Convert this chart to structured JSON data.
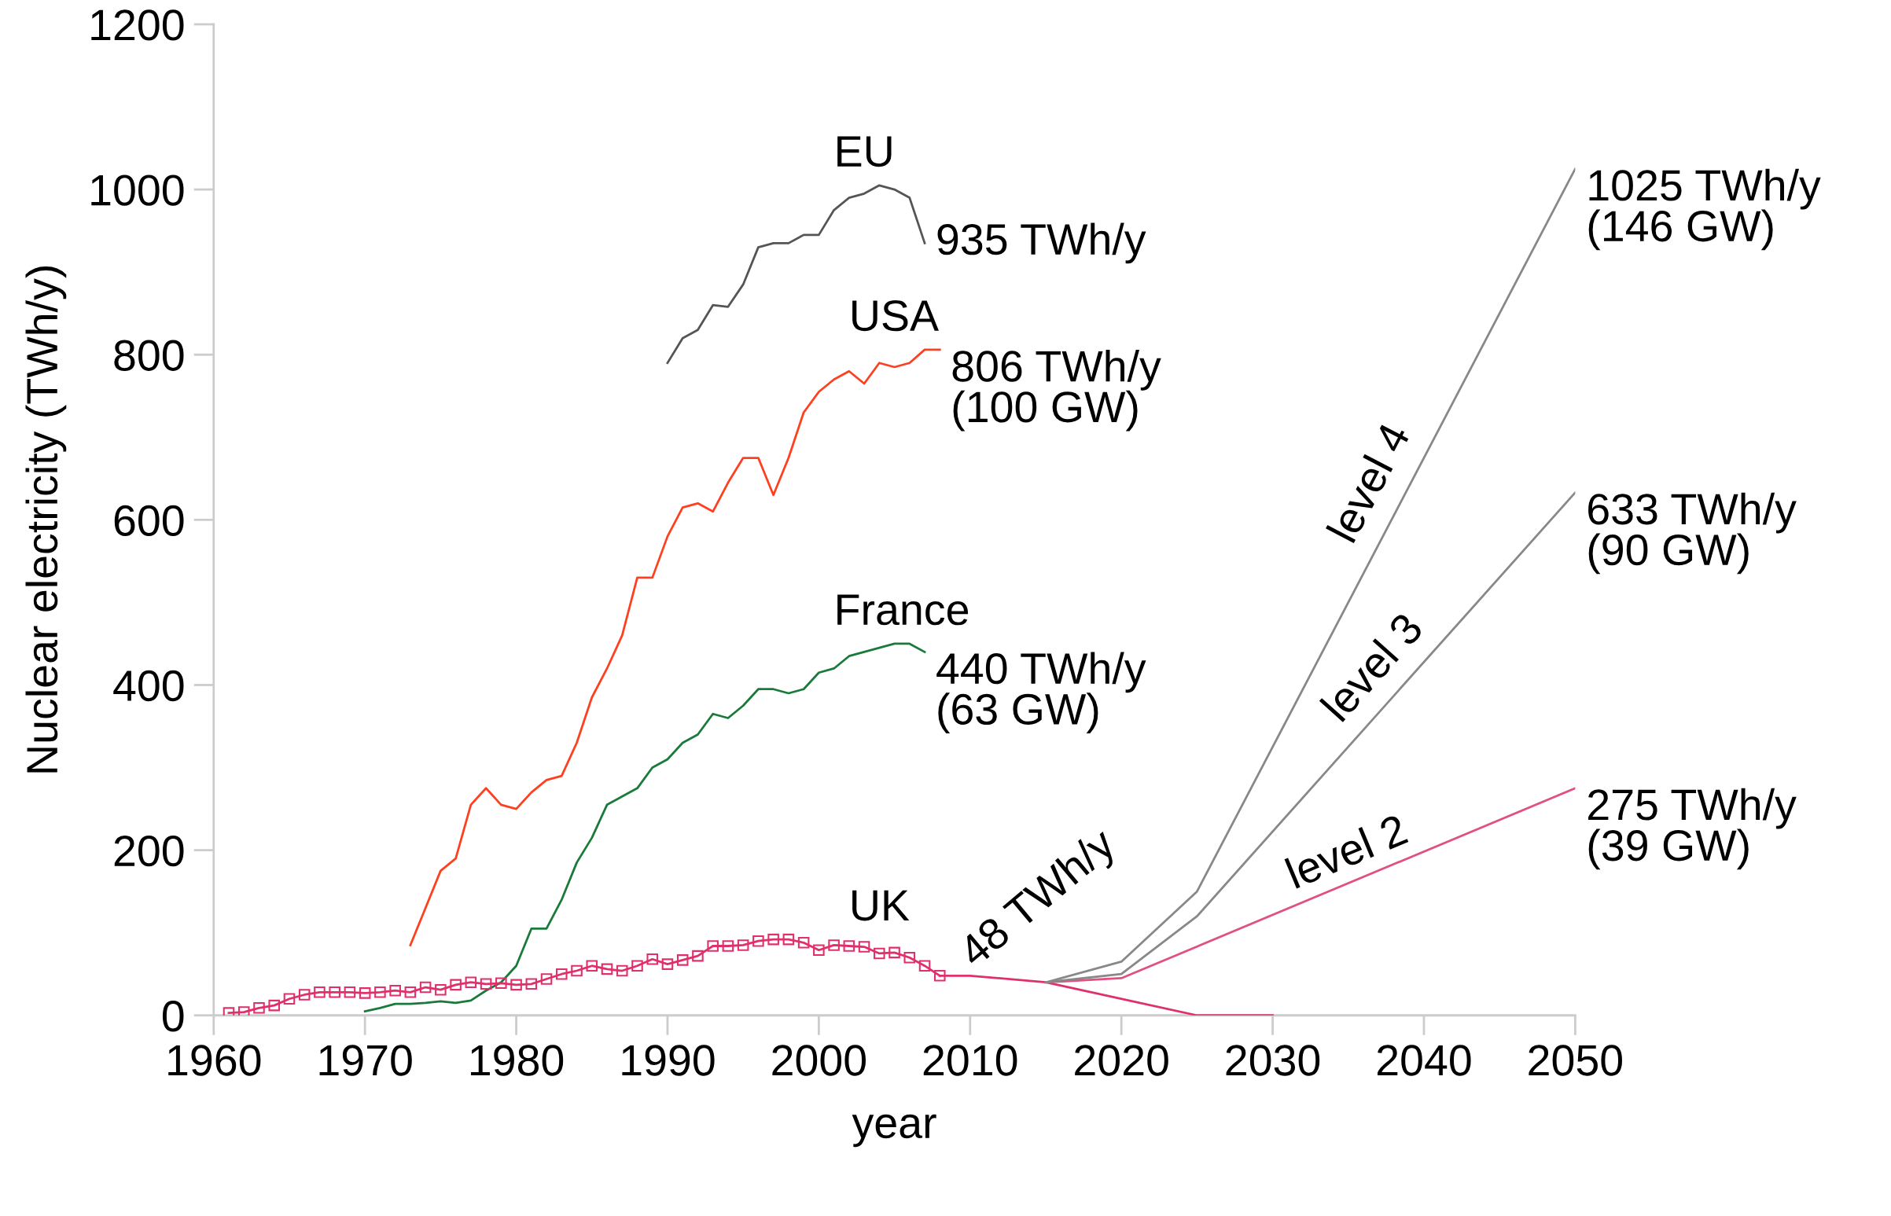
{
  "chart_data": {
    "type": "line",
    "xlabel": "year",
    "ylabel": "Nuclear electricity (TWh/y)",
    "xlim": [
      1960,
      2050
    ],
    "xticks": [
      1960,
      1970,
      1980,
      1990,
      2000,
      2010,
      2020,
      2030,
      2040,
      2050
    ],
    "ylim": [
      0,
      1200
    ],
    "yticks": [
      0,
      200,
      400,
      600,
      800,
      1000,
      1200
    ],
    "grid": false,
    "legend": false,
    "series": [
      {
        "name": "EU",
        "color": "#555555",
        "x": [
          1990,
          1991,
          1992,
          1993,
          1994,
          1995,
          1996,
          1997,
          1998,
          1999,
          2000,
          2001,
          2002,
          2003,
          2004,
          2005,
          2006,
          2007
        ],
        "values": [
          790,
          820,
          830,
          860,
          858,
          885,
          930,
          935,
          935,
          945,
          945,
          975,
          990,
          995,
          1005,
          1000,
          990,
          935
        ]
      },
      {
        "name": "USA",
        "color": "#ff4020",
        "x": [
          1973,
          1974,
          1975,
          1976,
          1977,
          1978,
          1979,
          1980,
          1981,
          1982,
          1983,
          1984,
          1985,
          1986,
          1987,
          1988,
          1989,
          1990,
          1991,
          1992,
          1993,
          1994,
          1995,
          1996,
          1997,
          1998,
          1999,
          2000,
          2001,
          2002,
          2003,
          2004,
          2005,
          2006,
          2007,
          2008
        ],
        "values": [
          85,
          130,
          175,
          190,
          255,
          275,
          255,
          250,
          270,
          285,
          290,
          330,
          385,
          420,
          460,
          530,
          530,
          580,
          615,
          620,
          610,
          645,
          675,
          675,
          630,
          675,
          730,
          755,
          770,
          780,
          765,
          790,
          785,
          790,
          806,
          806
        ]
      },
      {
        "name": "France",
        "color": "#1a7a3a",
        "x": [
          1970,
          1971,
          1972,
          1973,
          1974,
          1975,
          1976,
          1977,
          1978,
          1979,
          1980,
          1981,
          1982,
          1983,
          1984,
          1985,
          1986,
          1987,
          1988,
          1989,
          1990,
          1991,
          1992,
          1993,
          1994,
          1995,
          1996,
          1997,
          1998,
          1999,
          2000,
          2001,
          2002,
          2003,
          2004,
          2005,
          2006,
          2007
        ],
        "values": [
          5,
          9,
          14,
          14,
          15,
          17,
          15,
          18,
          30,
          40,
          60,
          105,
          105,
          140,
          185,
          215,
          255,
          265,
          275,
          300,
          310,
          330,
          340,
          365,
          360,
          375,
          395,
          395,
          390,
          395,
          415,
          420,
          435,
          440,
          445,
          450,
          450,
          440
        ]
      },
      {
        "name": "UK",
        "color": "#e0306a",
        "marker": "square",
        "x": [
          1961,
          1962,
          1963,
          1964,
          1965,
          1966,
          1967,
          1968,
          1969,
          1970,
          1971,
          1972,
          1973,
          1974,
          1975,
          1976,
          1977,
          1978,
          1979,
          1980,
          1981,
          1982,
          1983,
          1984,
          1985,
          1986,
          1987,
          1988,
          1989,
          1990,
          1991,
          1992,
          1993,
          1994,
          1995,
          1996,
          1997,
          1998,
          1999,
          2000,
          2001,
          2002,
          2003,
          2004,
          2005,
          2006,
          2007,
          2008
        ],
        "values": [
          3,
          4,
          9,
          12,
          20,
          25,
          28,
          28,
          28,
          27,
          28,
          30,
          28,
          34,
          31,
          37,
          40,
          38,
          39,
          37,
          38,
          44,
          50,
          54,
          60,
          56,
          54,
          60,
          68,
          62,
          67,
          72,
          84,
          84,
          85,
          90,
          92,
          92,
          88,
          79,
          85,
          84,
          83,
          75,
          76,
          70,
          60,
          48
        ]
      },
      {
        "color": "#e0306a",
        "x": [
          2008,
          2010,
          2015,
          2025,
          2030
        ],
        "values": [
          48,
          48,
          40,
          0,
          0
        ]
      },
      {
        "name": "level 2",
        "color": "#e05080",
        "x": [
          2015,
          2020,
          2050
        ],
        "values": [
          40,
          45,
          275
        ]
      },
      {
        "name": "level 3",
        "color": "#888888",
        "x": [
          2015,
          2020,
          2025,
          2050
        ],
        "values": [
          40,
          50,
          120,
          633
        ]
      },
      {
        "name": "level 4",
        "color": "#888888",
        "x": [
          2015,
          2020,
          2025,
          2050
        ],
        "values": [
          40,
          65,
          150,
          1025
        ]
      }
    ],
    "annotations": [
      {
        "text": "935 TWh/y",
        "x": 2007,
        "y": 935
      },
      {
        "text": "806 TWh/y\n(100 GW)",
        "x": 2008,
        "y": 806
      },
      {
        "text": "440 TWh/y\n(63 GW)",
        "x": 2007,
        "y": 440
      },
      {
        "text": "48 TWh/y",
        "x": 2010,
        "y": 48
      },
      {
        "text": "1025 TWh/y\n(146 GW)",
        "x": 2050,
        "y": 1025
      },
      {
        "text": "633 TWh/y\n(90 GW)",
        "x": 2050,
        "y": 633
      },
      {
        "text": "275 TWh/y\n(39 GW)",
        "x": 2050,
        "y": 275
      }
    ]
  }
}
